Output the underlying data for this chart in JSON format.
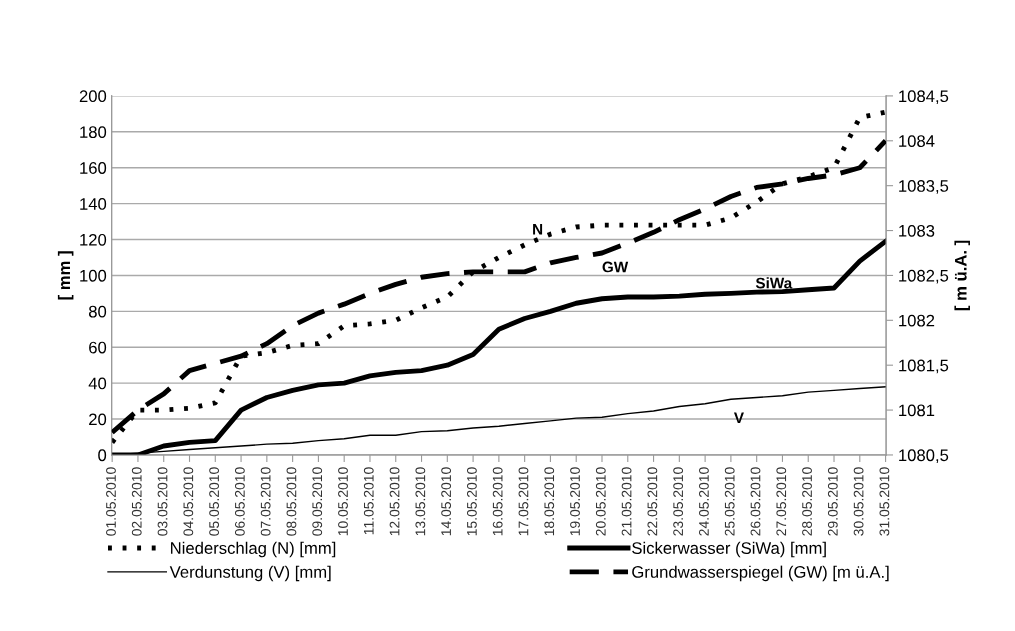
{
  "chart_data": {
    "type": "line",
    "categories": [
      "01.05.2010",
      "02.05.2010",
      "03.05.2010",
      "04.05.2010",
      "05.05.2010",
      "06.05.2010",
      "07.05.2010",
      "08.05.2010",
      "09.05.2010",
      "10.05.2010",
      "11.05.2010",
      "12.05.2010",
      "13.05.2010",
      "14.05.2010",
      "15.05.2010",
      "16.05.2010",
      "17.05.2010",
      "18.05.2010",
      "19.05.2010",
      "20.05.2010",
      "21.05.2010",
      "22.05.2010",
      "23.05.2010",
      "24.05.2010",
      "25.05.2010",
      "26.05.2010",
      "27.05.2010",
      "28.05.2010",
      "29.05.2010",
      "30.05.2010",
      "31.05.2010"
    ],
    "series": [
      {
        "name": "Niederschlag (N) [mm]",
        "color": "#000000",
        "line_style": "dotted",
        "values": [
          7,
          25,
          25,
          26,
          29,
          55,
          57,
          61,
          62,
          72,
          73,
          75,
          82,
          88,
          102,
          110,
          117,
          123,
          127,
          128,
          128,
          128,
          128,
          128,
          132,
          141,
          151,
          155,
          160,
          188,
          191
        ]
      },
      {
        "name": "Sickerwasser (SiWa) [mm]",
        "color": "#000000",
        "line_style": "solid",
        "values": [
          0,
          0,
          5,
          7,
          8,
          25,
          32,
          36,
          39,
          40,
          44,
          46,
          47,
          50,
          56,
          70,
          76,
          80,
          84.5,
          87,
          88,
          88,
          88.5,
          89.5,
          90,
          90.7,
          91,
          92,
          93,
          108,
          119
        ]
      },
      {
        "name": "Verdunstung (V) [mm]",
        "color": "#000000",
        "line_style": "solid",
        "values": [
          0,
          1,
          2,
          3,
          4,
          5,
          6,
          6.5,
          8,
          9,
          11,
          11,
          13,
          13.5,
          15,
          16,
          17.5,
          19,
          20.5,
          21,
          23,
          24.5,
          27,
          28.5,
          31,
          32,
          33,
          35,
          36,
          37,
          38
        ]
      },
      {
        "name": "Grundwasserspiegel (GW) [m ü.A.]",
        "color": "#000000",
        "line_style": "dashed",
        "axis": "y2",
        "values": [
          1080.75,
          1081.0,
          1081.18,
          1081.44,
          1081.52,
          1081.6,
          1081.74,
          1081.94,
          1082.08,
          1082.18,
          1082.3,
          1082.4,
          1082.48,
          1082.52,
          1082.54,
          1082.54,
          1082.54,
          1082.64,
          1082.7,
          1082.75,
          1082.86,
          1082.98,
          1083.12,
          1083.24,
          1083.38,
          1083.48,
          1083.52,
          1083.58,
          1083.62,
          1083.7,
          1084.0
        ]
      }
    ],
    "ylabel": "[ mm ]",
    "y2label": "[ m ü.A. ]",
    "ylim": [
      0,
      200
    ],
    "yticks": [
      0,
      20,
      40,
      60,
      80,
      100,
      120,
      140,
      160,
      180,
      200
    ],
    "y2lim": [
      1080.5,
      1084.5
    ],
    "y2ticks": [
      {
        "value": 1080.5,
        "label": "1080,5"
      },
      {
        "value": 1081,
        "label": "1081"
      },
      {
        "value": 1081.5,
        "label": "1081,5"
      },
      {
        "value": 1082,
        "label": "1082"
      },
      {
        "value": 1082.5,
        "label": "1082,5"
      },
      {
        "value": 1083,
        "label": "1083"
      },
      {
        "value": 1083.5,
        "label": "1083,5"
      },
      {
        "value": 1084,
        "label": "1084"
      },
      {
        "value": 1084.5,
        "label": "1084,5"
      }
    ],
    "annotations": [
      "N",
      "GW",
      "SiWa",
      "V"
    ],
    "grid": "y",
    "legend": "bottom",
    "marker": "none"
  }
}
